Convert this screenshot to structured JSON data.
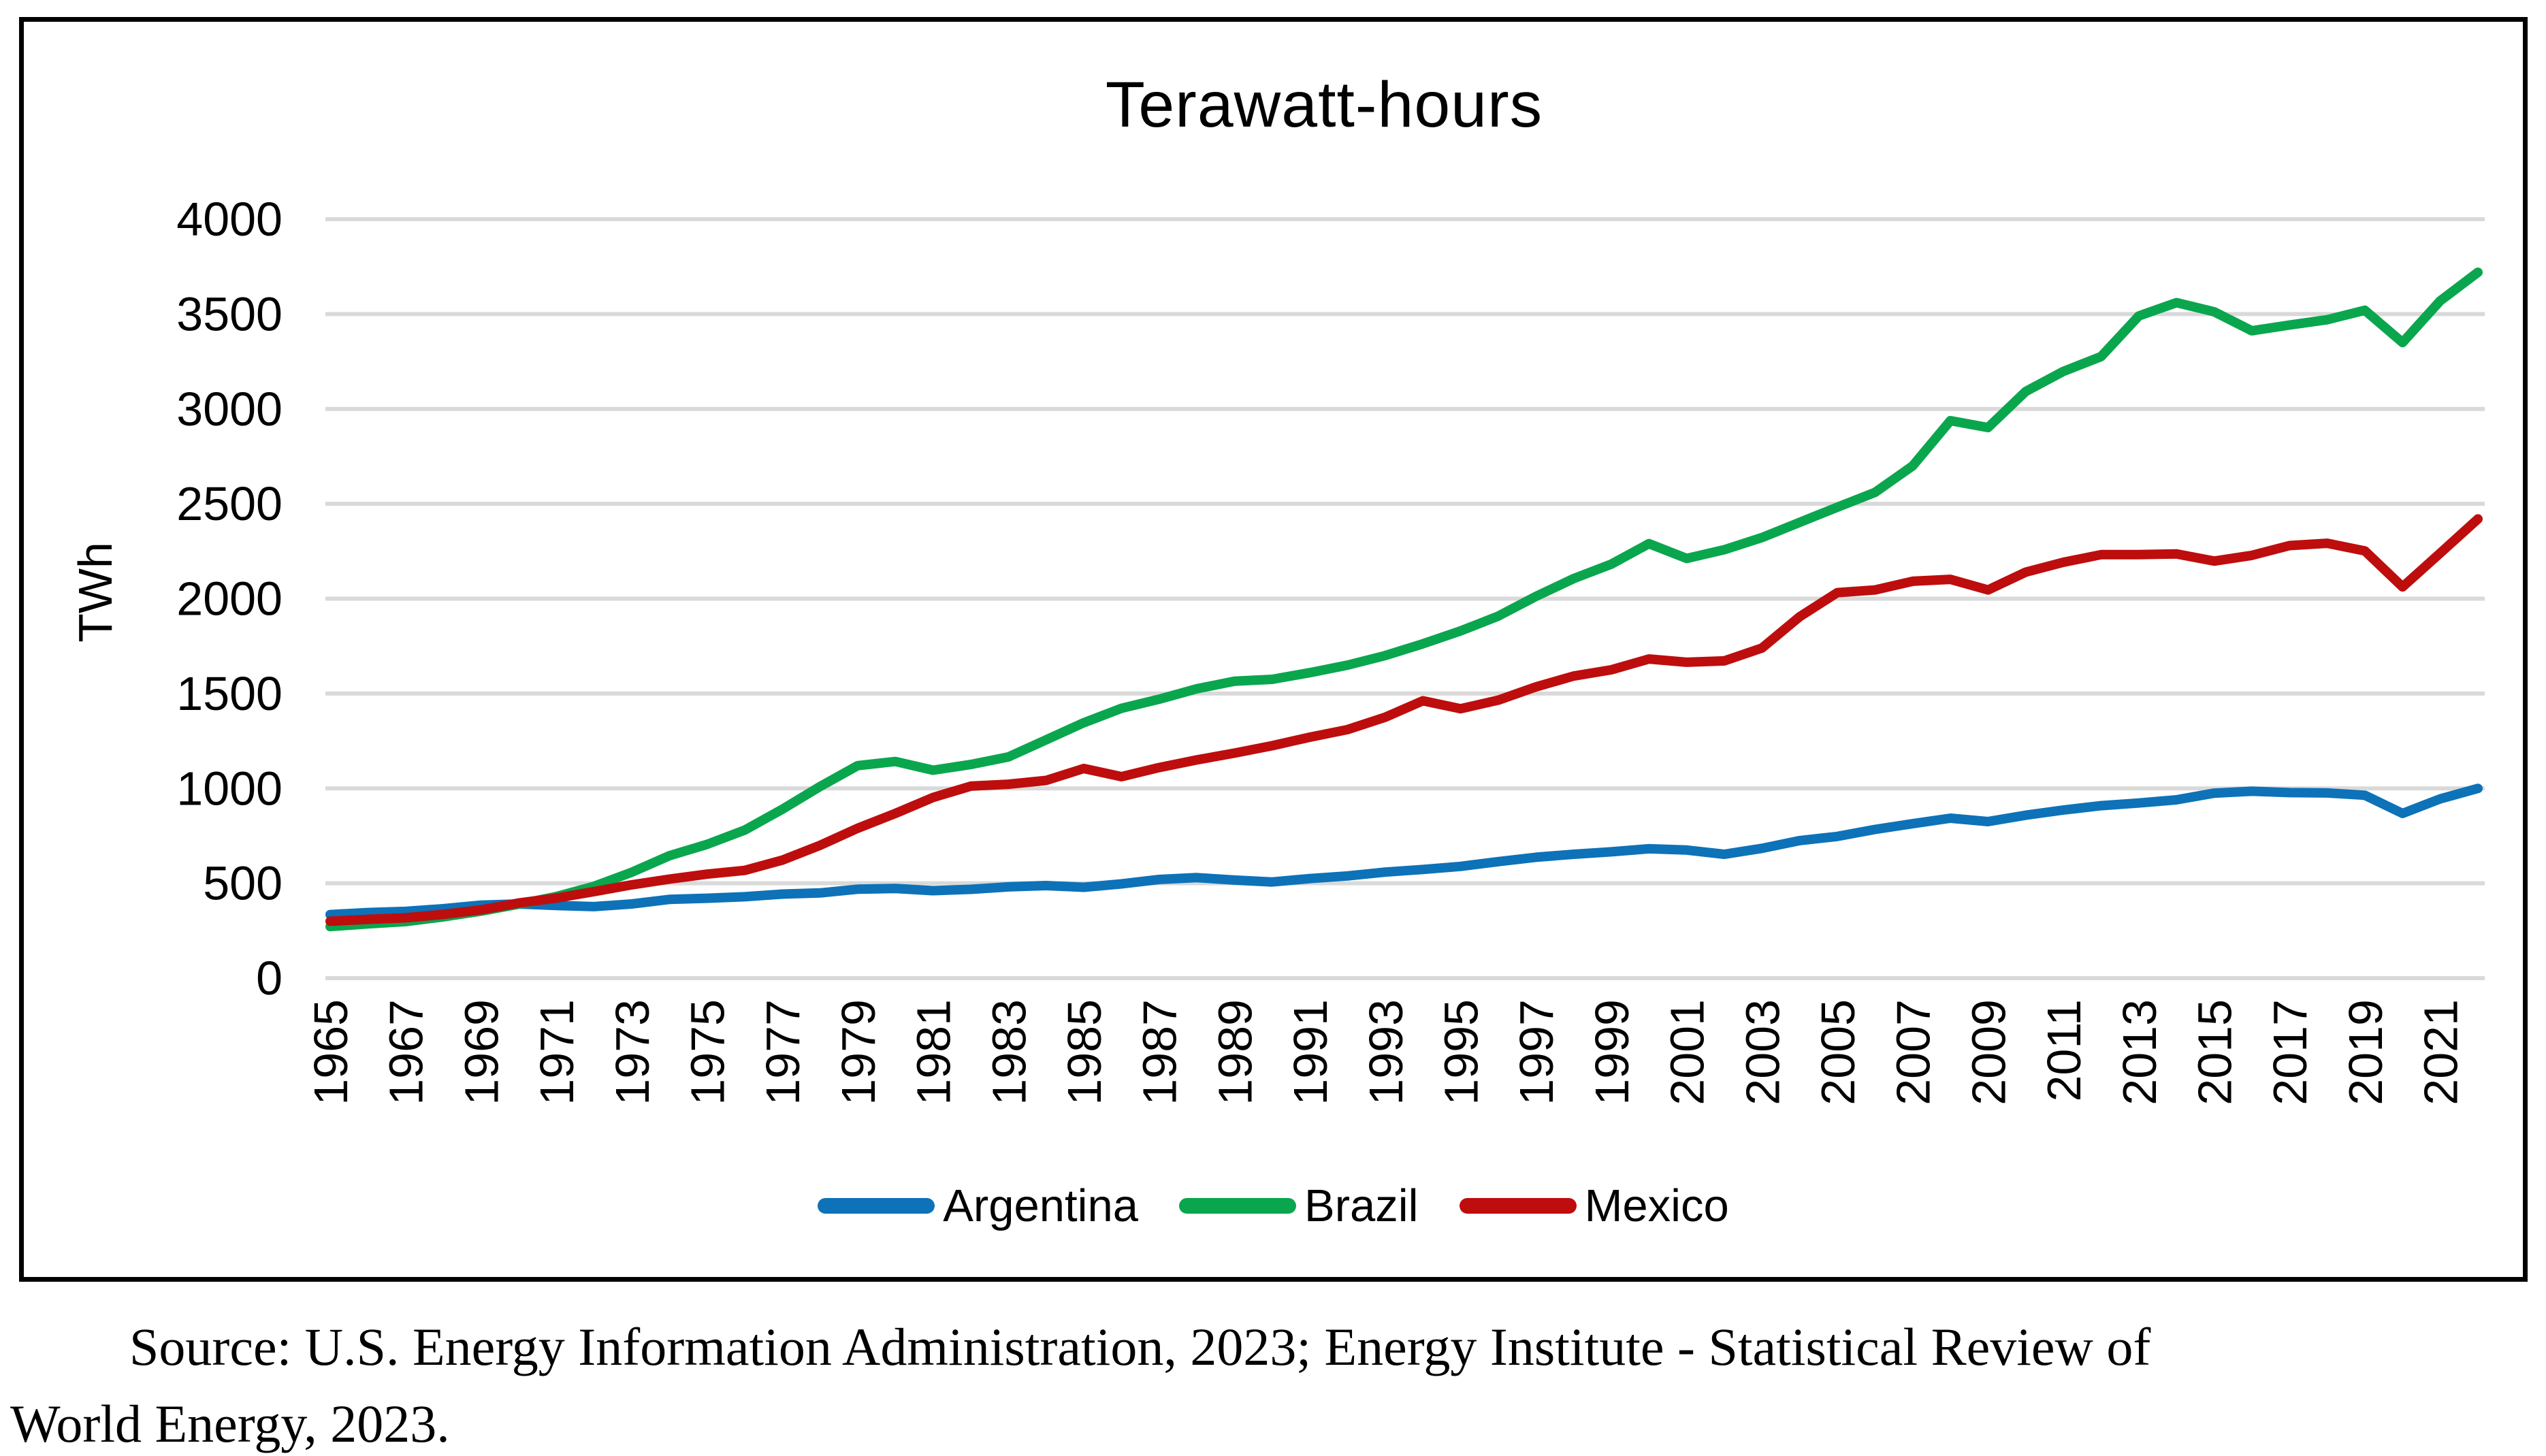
{
  "figure": {
    "title": "Terawatt-hours",
    "y_axis": {
      "label": "TWh"
    },
    "legend": [
      {
        "name": "Argentina",
        "color": "#0D72B8"
      },
      {
        "name": "Brazil",
        "color": "#0AA64E"
      },
      {
        "name": "Mexico",
        "color": "#BE0D0D"
      }
    ]
  },
  "source_text": {
    "line1": "Source: U.S. Energy Information Administration, 2023; Energy Institute - Statistical Review of",
    "line2": "World Energy, 2023."
  },
  "chart_data": {
    "type": "line",
    "title": "Terawatt-hours",
    "xlabel": "",
    "ylabel": "TWh",
    "ylim": [
      0,
      4000
    ],
    "xlim": [
      1965,
      2022
    ],
    "grid": "horizontal",
    "gridline_color": "#D9D9D9",
    "legend_position": "bottom",
    "yticks": [
      0,
      500,
      1000,
      1500,
      2000,
      2500,
      3000,
      3500,
      4000
    ],
    "xticks": [
      1965,
      1967,
      1969,
      1971,
      1973,
      1975,
      1977,
      1979,
      1981,
      1983,
      1985,
      1987,
      1989,
      1991,
      1993,
      1995,
      1997,
      1999,
      2001,
      2003,
      2005,
      2007,
      2009,
      2011,
      2013,
      2015,
      2017,
      2019,
      2021
    ],
    "x": [
      1965,
      1966,
      1967,
      1968,
      1969,
      1970,
      1971,
      1972,
      1973,
      1974,
      1975,
      1976,
      1977,
      1978,
      1979,
      1980,
      1981,
      1982,
      1983,
      1984,
      1985,
      1986,
      1987,
      1988,
      1989,
      1990,
      1991,
      1992,
      1993,
      1994,
      1995,
      1996,
      1997,
      1998,
      1999,
      2000,
      2001,
      2002,
      2003,
      2004,
      2005,
      2006,
      2007,
      2008,
      2009,
      2010,
      2011,
      2012,
      2013,
      2014,
      2015,
      2016,
      2017,
      2018,
      2019,
      2020,
      2021,
      2022
    ],
    "series": [
      {
        "name": "Argentina",
        "color": "#0D72B8",
        "values": [
          335,
          346,
          352,
          366,
          385,
          391,
          383,
          377,
          391,
          415,
          421,
          429,
          443,
          449,
          469,
          473,
          461,
          468,
          481,
          488,
          479,
          497,
          520,
          530,
          517,
          507,
          525,
          539,
          559,
          573,
          589,
          614,
          637,
          653,
          666,
          682,
          675,
          653,
          684,
          725,
          747,
          784,
          814,
          843,
          825,
          859,
          886,
          909,
          923,
          940,
          975,
          985,
          978,
          976,
          964,
          868,
          945,
          1000
        ]
      },
      {
        "name": "Brazil",
        "color": "#0AA64E",
        "values": [
          272,
          286,
          298,
          323,
          353,
          390,
          430,
          484,
          558,
          645,
          705,
          780,
          890,
          1010,
          1120,
          1142,
          1096,
          1126,
          1166,
          1256,
          1346,
          1422,
          1470,
          1525,
          1565,
          1575,
          1610,
          1650,
          1700,
          1762,
          1830,
          1908,
          2012,
          2106,
          2182,
          2290,
          2212,
          2258,
          2322,
          2402,
          2482,
          2560,
          2700,
          2938,
          2902,
          3092,
          3198,
          3276,
          3490,
          3560,
          3512,
          3412,
          3442,
          3470,
          3520,
          3350,
          3570,
          3720
        ]
      },
      {
        "name": "Mexico",
        "color": "#BE0D0D",
        "values": [
          300,
          310,
          318,
          336,
          360,
          396,
          422,
          456,
          492,
          522,
          548,
          568,
          622,
          700,
          790,
          868,
          952,
          1012,
          1022,
          1042,
          1105,
          1062,
          1110,
          1150,
          1186,
          1225,
          1270,
          1310,
          1375,
          1462,
          1420,
          1465,
          1535,
          1592,
          1625,
          1682,
          1665,
          1672,
          1740,
          1905,
          2032,
          2046,
          2092,
          2102,
          2046,
          2140,
          2192,
          2232,
          2232,
          2236,
          2198,
          2228,
          2280,
          2292,
          2252,
          2062,
          2240,
          2420
        ]
      }
    ]
  }
}
